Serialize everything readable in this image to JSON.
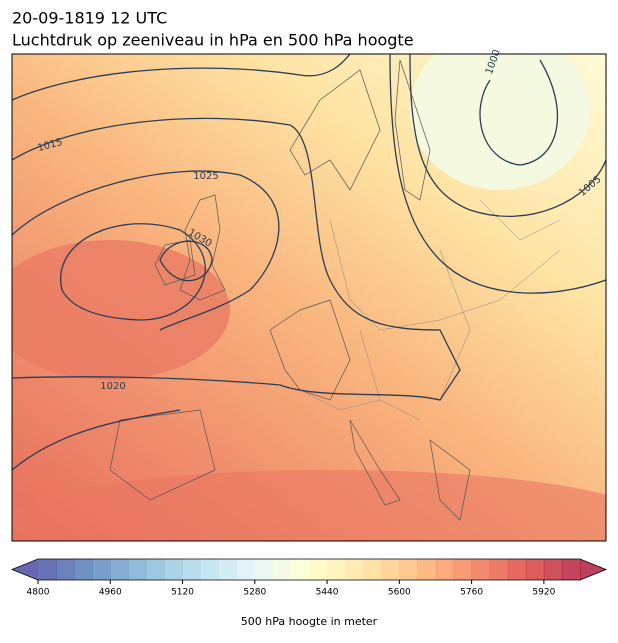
{
  "header": {
    "title": "20-09-1819 12 UTC",
    "subtitle": "Luchtdruk op zeeniveau in hPa en 500 hPa hoogte"
  },
  "map": {
    "isobar_labels": [
      1015,
      1025,
      1030,
      1020,
      1005,
      1000
    ]
  },
  "colorbar": {
    "label": "500 hPa hoogte in meter",
    "lim": [
      4800,
      6000
    ],
    "step": 40,
    "ticks": [
      4800,
      4960,
      5120,
      5280,
      5440,
      5600,
      5760,
      5920
    ],
    "colors": [
      "#313695",
      "#4575b4",
      "#74add1",
      "#abd9e9",
      "#e0f3f8",
      "#ffffbf",
      "#fee090",
      "#fdae61",
      "#f46d43",
      "#d73027",
      "#a50026"
    ]
  }
}
